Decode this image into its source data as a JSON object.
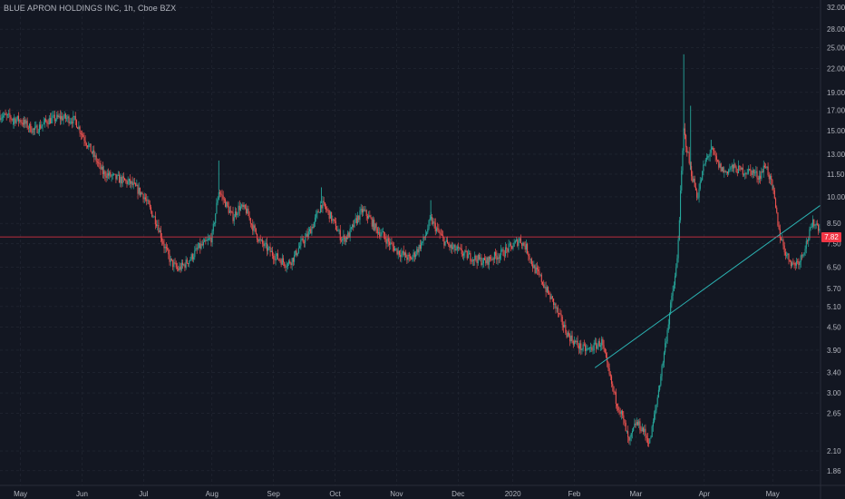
{
  "header": {
    "title": "BLUE APRON HOLDINGS INC, 1h, Cboe BZX"
  },
  "colors": {
    "background": "#131722",
    "grid": "#252a36",
    "up": "#26a69a",
    "down": "#ef5350",
    "trendline": "#2bb3b3",
    "price_line": "#f23645",
    "axis_text": "#b2b5be"
  },
  "chart_data": {
    "type": "candlestick",
    "title": "BLUE APRON HOLDINGS INC, 1h, Cboe BZX",
    "y_scale": "log",
    "ylim": [
      1.7,
      33.5
    ],
    "grid": true,
    "y_ticks": [
      "32.00",
      "28.00",
      "25.00",
      "22.00",
      "19.00",
      "17.00",
      "15.00",
      "13.00",
      "11.50",
      "10.00",
      "8.50",
      "7.50",
      "6.50",
      "5.70",
      "5.10",
      "4.50",
      "3.90",
      "3.40",
      "3.00",
      "2.65",
      "2.10",
      "1.86"
    ],
    "x_ticks": [
      "May",
      "Jun",
      "Jul",
      "Aug",
      "Sep",
      "Oct",
      "Nov",
      "Dec",
      "2020",
      "Feb",
      "Mar",
      "Apr",
      "May"
    ],
    "series_path": [
      [
        0,
        16.5
      ],
      [
        3,
        16.0
      ],
      [
        5,
        15.0
      ],
      [
        7,
        16.0
      ],
      [
        9,
        16.3
      ],
      [
        11,
        16.0
      ],
      [
        12,
        14.7
      ],
      [
        14,
        12.6
      ],
      [
        15,
        11.6
      ],
      [
        17,
        11.2
      ],
      [
        19,
        10.9
      ],
      [
        21,
        10.1
      ],
      [
        22,
        9.2
      ],
      [
        23,
        8.5
      ],
      [
        24,
        7.4
      ],
      [
        25,
        6.7
      ],
      [
        26,
        6.4
      ],
      [
        27,
        6.6
      ],
      [
        28,
        6.9
      ],
      [
        29,
        7.3
      ],
      [
        30,
        7.5
      ],
      [
        31,
        7.8
      ],
      [
        32,
        10.4
      ],
      [
        33,
        9.6
      ],
      [
        34,
        8.8
      ],
      [
        35,
        9.4
      ],
      [
        36,
        9.2
      ],
      [
        37,
        8.3
      ],
      [
        38,
        7.6
      ],
      [
        39,
        7.3
      ],
      [
        40,
        7.0
      ],
      [
        41,
        6.8
      ],
      [
        42,
        6.6
      ],
      [
        43,
        6.9
      ],
      [
        44,
        7.5
      ],
      [
        45,
        7.9
      ],
      [
        46,
        8.6
      ],
      [
        47,
        9.6
      ],
      [
        48,
        9.1
      ],
      [
        49,
        8.4
      ],
      [
        50,
        7.7
      ],
      [
        51,
        7.9
      ],
      [
        52,
        8.6
      ],
      [
        53,
        9.2
      ],
      [
        54,
        8.8
      ],
      [
        55,
        8.2
      ],
      [
        56,
        7.9
      ],
      [
        57,
        7.5
      ],
      [
        58,
        7.2
      ],
      [
        59,
        7.0
      ],
      [
        60,
        6.8
      ],
      [
        61,
        7.2
      ],
      [
        62,
        7.7
      ],
      [
        63,
        8.7
      ],
      [
        64,
        8.1
      ],
      [
        65,
        7.6
      ],
      [
        66,
        7.3
      ],
      [
        67,
        7.2
      ],
      [
        68,
        7.0
      ],
      [
        69,
        6.9
      ],
      [
        70,
        6.8
      ],
      [
        71,
        6.7
      ],
      [
        72,
        6.9
      ],
      [
        73,
        7.0
      ],
      [
        74,
        7.2
      ],
      [
        75,
        7.4
      ],
      [
        76,
        7.7
      ],
      [
        77,
        7.3
      ],
      [
        78,
        6.5
      ],
      [
        79,
        6.1
      ],
      [
        80,
        5.6
      ],
      [
        81,
        5.2
      ],
      [
        82,
        4.7
      ],
      [
        83,
        4.3
      ],
      [
        84,
        4.1
      ],
      [
        85,
        3.95
      ],
      [
        86,
        3.9
      ],
      [
        87,
        4.0
      ],
      [
        88,
        4.1
      ],
      [
        89,
        3.4
      ],
      [
        90,
        2.9
      ],
      [
        91,
        2.6
      ],
      [
        92,
        2.2
      ],
      [
        93,
        2.5
      ],
      [
        94,
        2.4
      ],
      [
        95,
        2.2
      ],
      [
        96,
        2.8
      ],
      [
        97,
        3.7
      ],
      [
        98,
        5.0
      ],
      [
        99,
        6.6
      ],
      [
        100,
        15.0
      ],
      [
        101,
        11.8
      ],
      [
        102,
        10.0
      ],
      [
        103,
        12.2
      ],
      [
        104,
        13.4
      ],
      [
        105,
        12.2
      ],
      [
        106,
        11.6
      ],
      [
        107,
        12.0
      ],
      [
        108,
        11.8
      ],
      [
        109,
        11.7
      ],
      [
        110,
        11.7
      ],
      [
        111,
        11.3
      ],
      [
        112,
        12.2
      ],
      [
        113,
        10.5
      ],
      [
        114,
        8.0
      ],
      [
        115,
        7.0
      ],
      [
        116,
        6.6
      ],
      [
        117,
        6.8
      ],
      [
        118,
        7.6
      ],
      [
        119,
        8.6
      ],
      [
        120,
        8.2
      ]
    ],
    "events": [
      {
        "i": 2,
        "mid": 15.2
      },
      {
        "i": 32,
        "mid": 12.5
      },
      {
        "i": 47,
        "mid": 10.6
      },
      {
        "i": 63,
        "mid": 9.8
      },
      {
        "i": 100,
        "mid": 24.0
      },
      {
        "i": 101,
        "mid": 17.5
      },
      {
        "i": 104,
        "mid": 14.2
      },
      {
        "i": 113,
        "mid": 10.8
      }
    ],
    "x_tick_index": [
      3,
      12,
      21,
      31,
      40,
      49,
      58,
      67,
      75,
      84,
      93,
      103,
      113
    ],
    "trendline": {
      "from": [
        87,
        3.5
      ],
      "to": [
        120,
        9.5
      ]
    },
    "last_price": {
      "value": 7.82,
      "label": "7.82"
    }
  }
}
